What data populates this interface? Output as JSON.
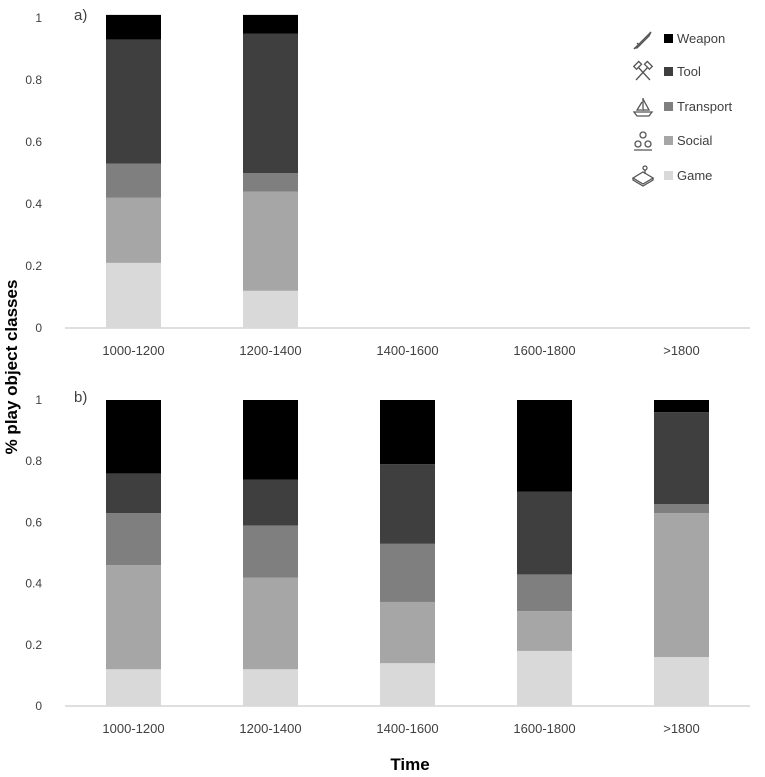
{
  "figure": {
    "ylabel": "% play object classes",
    "xlabel": "Time"
  },
  "legend": {
    "entries": [
      {
        "key": "weapon",
        "label": "Weapon",
        "icon": "sword-icon"
      },
      {
        "key": "tool",
        "label": "Tool",
        "icon": "crossed-hammers-icon"
      },
      {
        "key": "transport",
        "label": "Transport",
        "icon": "sailboat-icon"
      },
      {
        "key": "social",
        "label": "Social",
        "icon": "people-icon"
      },
      {
        "key": "game",
        "label": "Game",
        "icon": "board-game-icon"
      }
    ]
  },
  "colors": {
    "weapon": "#000000",
    "tool": "#3f3f3f",
    "transport": "#7f7f7f",
    "social": "#a6a6a6",
    "game": "#d9d9d9",
    "axis": "#bfbfbf",
    "text": "#404040"
  },
  "chart_data": [
    {
      "type": "bar",
      "stacked": true,
      "panel_label": "a)",
      "categories": [
        "1000-1200",
        "1200-1400",
        "1400-1600",
        "1600-1800",
        ">1800"
      ],
      "ylim": [
        0,
        1
      ],
      "yticks": [
        "0",
        "0.2",
        "0.4",
        "0.6",
        "0.8",
        "1"
      ],
      "grid": false,
      "legend_position": "top-right",
      "series": [
        {
          "name": "Game",
          "key": "game",
          "values": [
            0.21,
            0.12,
            null,
            null,
            null
          ]
        },
        {
          "name": "Social",
          "key": "social",
          "values": [
            0.21,
            0.32,
            null,
            null,
            null
          ]
        },
        {
          "name": "Transport",
          "key": "transport",
          "values": [
            0.11,
            0.06,
            null,
            null,
            null
          ]
        },
        {
          "name": "Tool",
          "key": "tool",
          "values": [
            0.4,
            0.45,
            null,
            null,
            null
          ]
        },
        {
          "name": "Weapon",
          "key": "weapon",
          "values": [
            0.08,
            0.06,
            null,
            null,
            null
          ]
        }
      ]
    },
    {
      "type": "bar",
      "stacked": true,
      "panel_label": "b)",
      "categories": [
        "1000-1200",
        "1200-1400",
        "1400-1600",
        "1600-1800",
        ">1800"
      ],
      "ylim": [
        0,
        1
      ],
      "yticks": [
        "0",
        "0.2",
        "0.4",
        "0.6",
        "0.8",
        "1"
      ],
      "grid": false,
      "series": [
        {
          "name": "Game",
          "key": "game",
          "values": [
            0.12,
            0.12,
            0.14,
            0.18,
            0.16
          ]
        },
        {
          "name": "Social",
          "key": "social",
          "values": [
            0.34,
            0.3,
            0.2,
            0.13,
            0.47
          ]
        },
        {
          "name": "Transport",
          "key": "transport",
          "values": [
            0.17,
            0.17,
            0.19,
            0.12,
            0.03
          ]
        },
        {
          "name": "Tool",
          "key": "tool",
          "values": [
            0.13,
            0.15,
            0.26,
            0.27,
            0.3
          ]
        },
        {
          "name": "Weapon",
          "key": "weapon",
          "values": [
            0.24,
            0.26,
            0.21,
            0.3,
            0.04
          ]
        }
      ]
    }
  ]
}
